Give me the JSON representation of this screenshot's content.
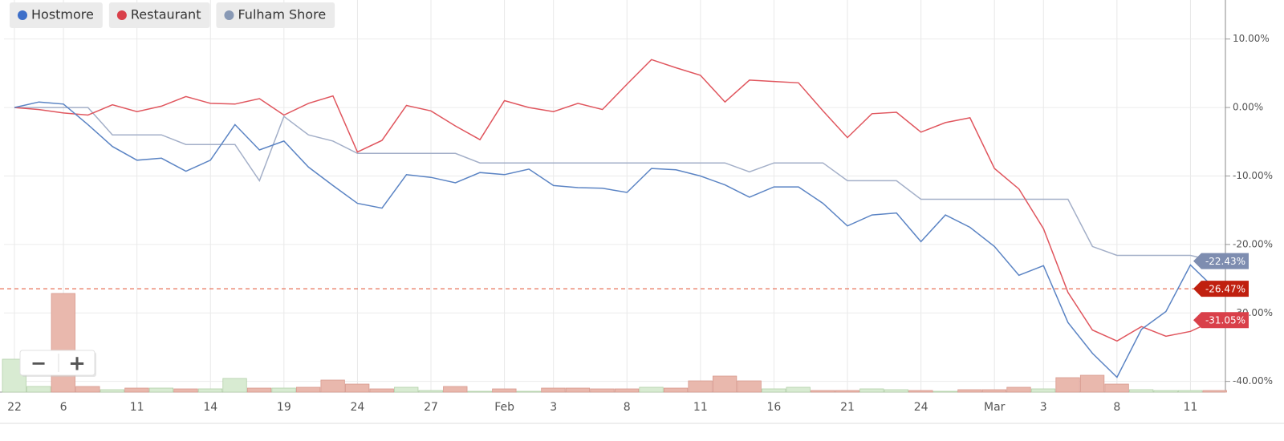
{
  "chart_data": {
    "type": "line",
    "categories": [
      "22",
      null,
      "6",
      null,
      null,
      "11",
      null,
      null,
      "14",
      null,
      null,
      "19",
      null,
      null,
      "24",
      null,
      null,
      "27",
      null,
      null,
      "Feb",
      null,
      "3",
      null,
      null,
      "8",
      null,
      null,
      "11",
      null,
      null,
      "16",
      null,
      null,
      "21",
      null,
      null,
      "24",
      null,
      null,
      "Mar",
      null,
      "3",
      null,
      null,
      "8",
      null,
      null,
      "11",
      null
    ],
    "series": [
      {
        "name": "Hostmore",
        "color": "#5b84c4",
        "legend_color": "#3d6fc9",
        "values": [
          0,
          0.8,
          0.5,
          -2.5,
          -5.7,
          -7.7,
          -7.4,
          -9.3,
          -7.7,
          -2.5,
          -6.2,
          -4.9,
          -8.7,
          -11.4,
          -14,
          -14.7,
          -9.8,
          -10.2,
          -11,
          -9.5,
          -9.8,
          -9,
          -11.4,
          -11.7,
          -11.8,
          -12.4,
          -8.9,
          -9.1,
          -10,
          -11.3,
          -13.1,
          -11.6,
          -11.6,
          -14,
          -17.3,
          -15.7,
          -15.4,
          -19.6,
          -15.7,
          -17.5,
          -20.3,
          -24.5,
          -23.1,
          -31.4,
          -35.9,
          -39.4,
          -32.4,
          -29.8,
          -23,
          -26.47
        ]
      },
      {
        "name": "Restaurant",
        "color": "#e0565e",
        "legend_color": "#d9404a",
        "label_color": "#d9404a",
        "values": [
          0,
          -0.3,
          -0.8,
          -1.1,
          0.4,
          -0.6,
          0.2,
          1.6,
          0.6,
          0.5,
          1.3,
          -1.1,
          0.6,
          1.7,
          -6.5,
          -4.8,
          0.3,
          -0.5,
          -2.7,
          -4.7,
          1,
          0,
          -0.6,
          0.6,
          -0.3,
          3.4,
          7,
          5.8,
          4.7,
          0.8,
          4,
          3.8,
          3.6,
          -0.5,
          -4.4,
          -0.9,
          -0.7,
          -3.6,
          -2.2,
          -1.5,
          -8.9,
          -11.9,
          -17.7,
          -27,
          -32.5,
          -34.1,
          -32,
          -33.4,
          -32.7,
          -31.05
        ],
        "value_labels": [
          null,
          null,
          null,
          null,
          null,
          null,
          null,
          null,
          null,
          null,
          null,
          null,
          null,
          null,
          null,
          null,
          null,
          null,
          null,
          null,
          null,
          null,
          null,
          null,
          null,
          null,
          null,
          null,
          null,
          null,
          null,
          null,
          null,
          null,
          null,
          null,
          null,
          null,
          null,
          null,
          null,
          null,
          null,
          null,
          null,
          null,
          null,
          null,
          null,
          "-31.05%"
        ]
      },
      {
        "name": "Fulham Shore",
        "color": "#a3afc8",
        "legend_color": "#8899b5",
        "label_color": "#7e8db0",
        "values": [
          0,
          0,
          0,
          0,
          -4,
          -4,
          -4,
          -5.4,
          -5.4,
          -5.4,
          -10.7,
          -1.3,
          -4,
          -4.9,
          -6.7,
          -6.7,
          -6.7,
          -6.7,
          -6.7,
          -8.1,
          -8.1,
          -8.1,
          -8.1,
          -8.1,
          -8.1,
          -8.1,
          -8.1,
          -8.1,
          -8.1,
          -8.1,
          -9.4,
          -8.1,
          -8.1,
          -8.1,
          -10.7,
          -10.7,
          -10.7,
          -13.4,
          -13.4,
          -13.4,
          -13.4,
          -13.4,
          -13.4,
          -13.4,
          -20.3,
          -21.6,
          -21.6,
          -21.6,
          -21.6,
          -22.43
        ],
        "value_labels": [
          null,
          null,
          null,
          null,
          null,
          null,
          null,
          null,
          null,
          null,
          null,
          null,
          null,
          null,
          null,
          null,
          null,
          null,
          null,
          null,
          null,
          null,
          null,
          null,
          null,
          null,
          null,
          null,
          null,
          null,
          null,
          null,
          null,
          null,
          null,
          null,
          null,
          null,
          null,
          null,
          null,
          null,
          null,
          null,
          null,
          null,
          null,
          null,
          null,
          "-22.43%"
        ]
      }
    ],
    "reference_line": {
      "value": -26.47,
      "label": "-26.47%",
      "color": "#e8735a",
      "label_color": "#c0200f"
    },
    "volume": [
      {
        "color": "#e9b8ad",
        "values": [
          null,
          null,
          123,
          7,
          null,
          5,
          null,
          4,
          null,
          null,
          5,
          null,
          6,
          15,
          10,
          4,
          null,
          null,
          7,
          null,
          4,
          null,
          5,
          5,
          4,
          4,
          null,
          5,
          14,
          20,
          14,
          null,
          null,
          2,
          2,
          null,
          null,
          2,
          null,
          3,
          3,
          6,
          null,
          18,
          21,
          10,
          null,
          null,
          null,
          2
        ]
      },
      {
        "color": "#d8ebd2",
        "values": [
          41,
          7,
          null,
          null,
          3,
          null,
          5,
          null,
          4,
          17,
          null,
          5,
          null,
          null,
          null,
          null,
          6,
          2,
          null,
          1,
          null,
          1,
          null,
          null,
          null,
          null,
          6,
          null,
          null,
          null,
          null,
          4,
          6,
          null,
          null,
          4,
          3,
          null,
          1,
          null,
          null,
          null,
          4,
          null,
          null,
          null,
          3,
          2,
          2,
          null
        ]
      }
    ],
    "vlim": [
      0,
      130
    ],
    "ylim": [
      -42.5,
      15.7
    ],
    "yticks": [
      {
        "value": 10,
        "label": "10.00%"
      },
      {
        "value": 0,
        "label": "0.00%"
      },
      {
        "value": -10,
        "label": "-10.00%"
      },
      {
        "value": -20,
        "label": "-20.00%"
      },
      {
        "value": -30,
        "label": "-30.00%"
      },
      {
        "value": -40,
        "label": "-40.00%"
      }
    ],
    "grid": true
  },
  "controls": {
    "zoom_out": "−",
    "zoom_in": "+"
  }
}
